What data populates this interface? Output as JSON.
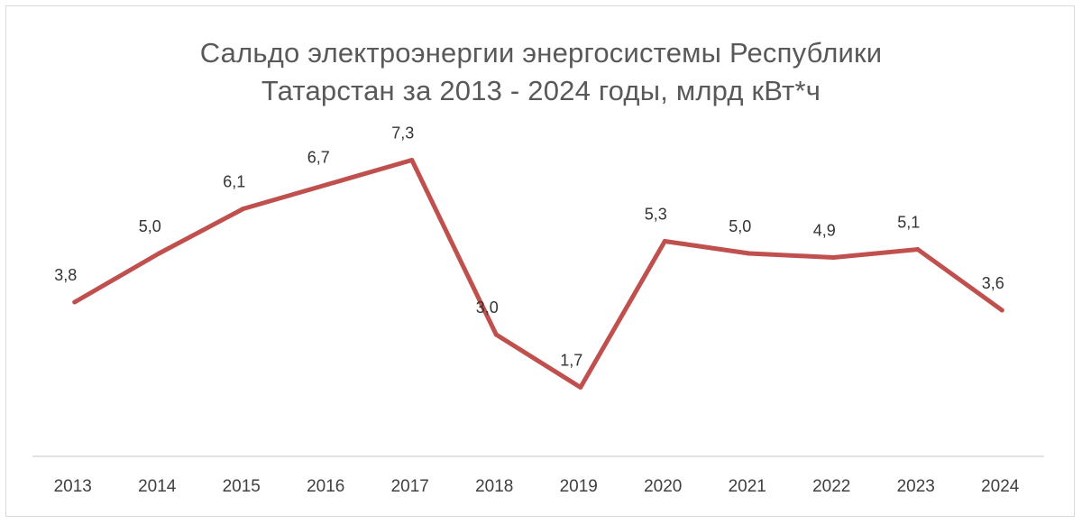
{
  "chart_data": {
    "type": "line",
    "title_lines": [
      "Сальдо электроэнергии энергосистемы Республики",
      "Татарстан за 2013 - 2024 годы, млрд кВт*ч"
    ],
    "categories": [
      "2013",
      "2014",
      "2015",
      "2016",
      "2017",
      "2018",
      "2019",
      "2020",
      "2021",
      "2022",
      "2023",
      "2024"
    ],
    "series": [
      {
        "values": [
          3.8,
          5.0,
          6.1,
          6.7,
          7.3,
          3.0,
          1.7,
          5.3,
          5.0,
          4.9,
          5.1,
          3.6
        ],
        "data_labels": [
          "3,8",
          "5,0",
          "6,1",
          "6,7",
          "7,3",
          "3,0",
          "1,7",
          "5,3",
          "5,0",
          "4,9",
          "5,1",
          "3,6"
        ],
        "color": "#C0504D"
      }
    ],
    "xlabel": "",
    "ylabel": "",
    "ylim": [
      0,
      9
    ],
    "grid": false,
    "legend": "none",
    "axis_color": "#d9d9d9",
    "title_color": "#595959"
  }
}
